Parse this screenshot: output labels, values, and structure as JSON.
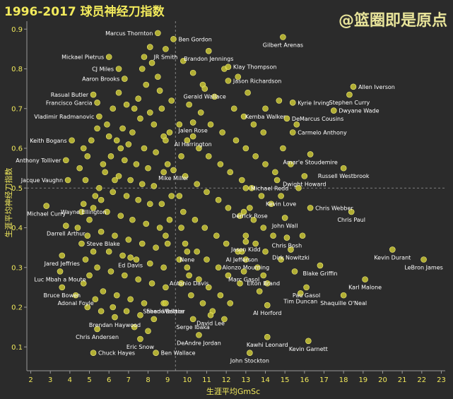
{
  "title": "1996-2017 球员神经刀指数",
  "watermark": "@篮圈即是原点",
  "chart_data": {
    "type": "scatter",
    "title": "1996-2017 球员神经刀指数",
    "xlabel": "生涯平均GmSc",
    "ylabel": "生涯平均神经刀指数",
    "xlim": [
      1.8,
      23.2
    ],
    "ylim": [
      0.04,
      0.92
    ],
    "xticks": [
      2,
      3,
      4,
      5,
      6,
      7,
      8,
      9,
      10,
      11,
      12,
      13,
      14,
      15,
      16,
      17,
      18,
      19,
      20,
      21,
      22,
      23
    ],
    "yticks": [
      0.1,
      0.2,
      0.3,
      0.4,
      0.5,
      0.6,
      0.7,
      0.8,
      0.9
    ],
    "reference_lines": {
      "x": 9.4,
      "y": 0.5
    },
    "grid": false,
    "labeled_points": [
      {
        "name": "Marcus Thornton",
        "x": 8.5,
        "y": 0.89,
        "anchor": "end"
      },
      {
        "name": "Ben Gordon",
        "x": 9.3,
        "y": 0.875,
        "anchor": "start"
      },
      {
        "name": "Gilbert Arenas",
        "x": 14.9,
        "y": 0.88,
        "anchor": "middle"
      },
      {
        "name": "JR Smith",
        "x": 8.9,
        "y": 0.85,
        "anchor": "middle"
      },
      {
        "name": "Brandon Jennings",
        "x": 11.1,
        "y": 0.845,
        "anchor": "middle"
      },
      {
        "name": "Mickael Pietrus",
        "x": 6.0,
        "y": 0.83,
        "anchor": "end"
      },
      {
        "name": "Klay Thompson",
        "x": 12.1,
        "y": 0.805,
        "anchor": "start"
      },
      {
        "name": "CJ Miles",
        "x": 6.5,
        "y": 0.8,
        "anchor": "end"
      },
      {
        "name": "Aaron Brooks",
        "x": 6.8,
        "y": 0.775,
        "anchor": "end"
      },
      {
        "name": "Jason Richardson",
        "x": 12.1,
        "y": 0.77,
        "anchor": "start"
      },
      {
        "name": "Gerald Wallace",
        "x": 10.9,
        "y": 0.75,
        "anchor": "middle"
      },
      {
        "name": "Allen Iverson",
        "x": 18.5,
        "y": 0.755,
        "anchor": "start"
      },
      {
        "name": "Rasual Butler",
        "x": 5.2,
        "y": 0.735,
        "anchor": "end"
      },
      {
        "name": "Stephen Curry",
        "x": 18.3,
        "y": 0.735,
        "anchor": "middle"
      },
      {
        "name": "Francisco Garcia",
        "x": 5.4,
        "y": 0.715,
        "anchor": "end"
      },
      {
        "name": "Kyrie Irving",
        "x": 15.4,
        "y": 0.715,
        "anchor": "start"
      },
      {
        "name": "Kemba Walker",
        "x": 14.0,
        "y": 0.7,
        "anchor": "middle"
      },
      {
        "name": "Dwyane Wade",
        "x": 17.5,
        "y": 0.695,
        "anchor": "start"
      },
      {
        "name": "Vladimir Radmanovic",
        "x": 5.5,
        "y": 0.68,
        "anchor": "end"
      },
      {
        "name": "DeMarcus Cousins",
        "x": 15.1,
        "y": 0.675,
        "anchor": "start"
      },
      {
        "name": "Jalen Rose",
        "x": 10.3,
        "y": 0.665,
        "anchor": "middle"
      },
      {
        "name": "Carmelo Anthony",
        "x": 15.4,
        "y": 0.64,
        "anchor": "start"
      },
      {
        "name": "Al Harrington",
        "x": 10.3,
        "y": 0.63,
        "anchor": "middle"
      },
      {
        "name": "Keith Bogans",
        "x": 4.1,
        "y": 0.62,
        "anchor": "end"
      },
      {
        "name": "Amar'e Stoudemire",
        "x": 16.3,
        "y": 0.585,
        "anchor": "middle"
      },
      {
        "name": "Anthony Tolliver",
        "x": 3.8,
        "y": 0.57,
        "anchor": "end"
      },
      {
        "name": "Russell Westbrook",
        "x": 18.0,
        "y": 0.55,
        "anchor": "middle"
      },
      {
        "name": "Mike Miller",
        "x": 9.3,
        "y": 0.545,
        "anchor": "middle"
      },
      {
        "name": "Dwight Howard",
        "x": 16.0,
        "y": 0.53,
        "anchor": "middle"
      },
      {
        "name": "Jacque Vaughn",
        "x": 3.9,
        "y": 0.52,
        "anchor": "end"
      },
      {
        "name": "Michael Redd",
        "x": 13.0,
        "y": 0.5,
        "anchor": "start"
      },
      {
        "name": "Kevin Love",
        "x": 14.8,
        "y": 0.48,
        "anchor": "middle"
      },
      {
        "name": "Wayne Ellington",
        "x": 4.7,
        "y": 0.46,
        "anchor": "middle"
      },
      {
        "name": "Michael Curry",
        "x": 2.8,
        "y": 0.455,
        "anchor": "middle"
      },
      {
        "name": "Derrick Rose",
        "x": 13.2,
        "y": 0.45,
        "anchor": "middle"
      },
      {
        "name": "Chris Webber",
        "x": 16.3,
        "y": 0.45,
        "anchor": "start"
      },
      {
        "name": "Chris Paul",
        "x": 18.4,
        "y": 0.44,
        "anchor": "middle"
      },
      {
        "name": "John Wall",
        "x": 15.0,
        "y": 0.425,
        "anchor": "middle"
      },
      {
        "name": "Darrell Arthur",
        "x": 3.8,
        "y": 0.405,
        "anchor": "middle"
      },
      {
        "name": "Chris Bosh",
        "x": 15.1,
        "y": 0.375,
        "anchor": "middle"
      },
      {
        "name": "Steve Blake",
        "x": 4.6,
        "y": 0.36,
        "anchor": "start"
      },
      {
        "name": "Jason Kidd",
        "x": 13.0,
        "y": 0.365,
        "anchor": "middle"
      },
      {
        "name": "Al Jefferson",
        "x": 12.8,
        "y": 0.34,
        "anchor": "middle"
      },
      {
        "name": "Dirk Nowitzki",
        "x": 15.3,
        "y": 0.345,
        "anchor": "middle"
      },
      {
        "name": "Kevin Durant",
        "x": 20.5,
        "y": 0.345,
        "anchor": "middle"
      },
      {
        "name": "Nene",
        "x": 10.0,
        "y": 0.34,
        "anchor": "middle"
      },
      {
        "name": "Jared Jeffries",
        "x": 3.6,
        "y": 0.33,
        "anchor": "middle"
      },
      {
        "name": "Ed Davis",
        "x": 7.1,
        "y": 0.325,
        "anchor": "middle"
      },
      {
        "name": "LeBron James",
        "x": 22.1,
        "y": 0.32,
        "anchor": "middle"
      },
      {
        "name": "Alonzo Mourning",
        "x": 13.0,
        "y": 0.32,
        "anchor": "middle"
      },
      {
        "name": "Blake Griffin",
        "x": 16.8,
        "y": 0.305,
        "anchor": "middle"
      },
      {
        "name": "Luc Mbah a Moute",
        "x": 3.5,
        "y": 0.29,
        "anchor": "middle"
      },
      {
        "name": "Marc Gasol",
        "x": 12.9,
        "y": 0.29,
        "anchor": "middle"
      },
      {
        "name": "Antonio Davis",
        "x": 10.1,
        "y": 0.28,
        "anchor": "middle"
      },
      {
        "name": "Elton Brand",
        "x": 13.9,
        "y": 0.28,
        "anchor": "middle"
      },
      {
        "name": "Karl Malone",
        "x": 19.1,
        "y": 0.27,
        "anchor": "middle"
      },
      {
        "name": "Pau Gasol",
        "x": 16.1,
        "y": 0.25,
        "anchor": "middle"
      },
      {
        "name": "Bruce Bowen",
        "x": 3.6,
        "y": 0.25,
        "anchor": "middle"
      },
      {
        "name": "Adonal Foyle",
        "x": 4.3,
        "y": 0.23,
        "anchor": "middle"
      },
      {
        "name": "Tim Duncan",
        "x": 15.8,
        "y": 0.235,
        "anchor": "middle"
      },
      {
        "name": "Shaquille O'Neal",
        "x": 18.0,
        "y": 0.23,
        "anchor": "middle"
      },
      {
        "name": "Sheed Wallace",
        "x": 8.8,
        "y": 0.21,
        "anchor": "middle"
      },
      {
        "name": "Shane Battier",
        "x": 8.9,
        "y": 0.21,
        "anchor": "middle"
      },
      {
        "name": "Al Horford",
        "x": 14.1,
        "y": 0.205,
        "anchor": "middle"
      },
      {
        "name": "David Lee",
        "x": 11.2,
        "y": 0.18,
        "anchor": "middle"
      },
      {
        "name": "Brendan Haywood",
        "x": 6.3,
        "y": 0.175,
        "anchor": "middle"
      },
      {
        "name": "Serge Ibaka",
        "x": 10.3,
        "y": 0.17,
        "anchor": "middle"
      },
      {
        "name": "Chris Andersen",
        "x": 5.4,
        "y": 0.145,
        "anchor": "middle"
      },
      {
        "name": "DeAndre Jordan",
        "x": 10.6,
        "y": 0.13,
        "anchor": "middle"
      },
      {
        "name": "Kawhi Leonard",
        "x": 14.1,
        "y": 0.125,
        "anchor": "middle"
      },
      {
        "name": "Eric Snow",
        "x": 7.6,
        "y": 0.12,
        "anchor": "middle"
      },
      {
        "name": "Kevin Garnett",
        "x": 16.2,
        "y": 0.115,
        "anchor": "middle"
      },
      {
        "name": "Chuck Hayes",
        "x": 5.2,
        "y": 0.085,
        "anchor": "start"
      },
      {
        "name": "Ben Wallace",
        "x": 8.4,
        "y": 0.085,
        "anchor": "start"
      },
      {
        "name": "John Stockton",
        "x": 13.2,
        "y": 0.085,
        "anchor": "middle"
      }
    ],
    "unlabeled_points": [
      [
        8.1,
        0.855
      ],
      [
        7.8,
        0.83
      ],
      [
        8.2,
        0.815
      ],
      [
        7.7,
        0.8
      ],
      [
        8.5,
        0.78
      ],
      [
        7.9,
        0.76
      ],
      [
        8.6,
        0.745
      ],
      [
        7.5,
        0.725
      ],
      [
        6.9,
        0.71
      ],
      [
        7.3,
        0.7
      ],
      [
        8.1,
        0.69
      ],
      [
        7.6,
        0.675
      ],
      [
        8.3,
        0.66
      ],
      [
        6.7,
        0.65
      ],
      [
        7.2,
        0.64
      ],
      [
        8.8,
        0.63
      ],
      [
        6.4,
        0.62
      ],
      [
        7.0,
        0.61
      ],
      [
        7.8,
        0.6
      ],
      [
        8.4,
        0.59
      ],
      [
        6.1,
        0.58
      ],
      [
        6.8,
        0.57
      ],
      [
        7.4,
        0.56
      ],
      [
        8.0,
        0.55
      ],
      [
        5.8,
        0.54
      ],
      [
        6.5,
        0.53
      ],
      [
        7.1,
        0.52
      ],
      [
        7.7,
        0.51
      ],
      [
        8.3,
        0.505
      ],
      [
        5.5,
        0.5
      ],
      [
        6.2,
        0.49
      ],
      [
        6.9,
        0.48
      ],
      [
        7.5,
        0.47
      ],
      [
        8.1,
        0.46
      ],
      [
        5.2,
        0.45
      ],
      [
        5.9,
        0.44
      ],
      [
        6.6,
        0.43
      ],
      [
        7.2,
        0.42
      ],
      [
        7.9,
        0.41
      ],
      [
        8.6,
        0.4
      ],
      [
        5.6,
        0.39
      ],
      [
        6.3,
        0.38
      ],
      [
        7.0,
        0.37
      ],
      [
        7.7,
        0.36
      ],
      [
        8.4,
        0.35
      ],
      [
        6.0,
        0.34
      ],
      [
        6.7,
        0.33
      ],
      [
        7.4,
        0.32
      ],
      [
        8.1,
        0.31
      ],
      [
        8.8,
        0.3
      ],
      [
        5.4,
        0.3
      ],
      [
        6.1,
        0.29
      ],
      [
        6.8,
        0.28
      ],
      [
        7.5,
        0.27
      ],
      [
        8.2,
        0.26
      ],
      [
        8.9,
        0.25
      ],
      [
        5.7,
        0.24
      ],
      [
        6.4,
        0.23
      ],
      [
        7.1,
        0.22
      ],
      [
        7.8,
        0.21
      ],
      [
        6.2,
        0.2
      ],
      [
        6.9,
        0.19
      ],
      [
        7.6,
        0.18
      ],
      [
        8.3,
        0.17
      ],
      [
        7.3,
        0.15
      ],
      [
        8.0,
        0.14
      ],
      [
        4.7,
        0.6
      ],
      [
        4.9,
        0.58
      ],
      [
        5.1,
        0.62
      ],
      [
        4.5,
        0.55
      ],
      [
        4.8,
        0.52
      ],
      [
        5.3,
        0.48
      ],
      [
        4.6,
        0.44
      ],
      [
        5.0,
        0.42
      ],
      [
        4.4,
        0.4
      ],
      [
        4.9,
        0.38
      ],
      [
        5.2,
        0.34
      ],
      [
        4.8,
        0.32
      ],
      [
        5.0,
        0.28
      ],
      [
        4.7,
        0.26
      ],
      [
        5.3,
        0.22
      ],
      [
        5.6,
        0.19
      ],
      [
        4.9,
        0.2
      ],
      [
        6.5,
        0.74
      ],
      [
        6.2,
        0.7
      ],
      [
        5.9,
        0.66
      ],
      [
        6.6,
        0.6
      ],
      [
        5.7,
        0.56
      ],
      [
        6.0,
        0.63
      ],
      [
        5.4,
        0.65
      ],
      [
        6.3,
        0.52
      ],
      [
        5.6,
        0.47
      ],
      [
        9.8,
        0.82
      ],
      [
        10.3,
        0.79
      ],
      [
        10.8,
        0.76
      ],
      [
        11.4,
        0.73
      ],
      [
        10.1,
        0.71
      ],
      [
        10.7,
        0.69
      ],
      [
        11.2,
        0.66
      ],
      [
        11.8,
        0.64
      ],
      [
        10.0,
        0.62
      ],
      [
        10.6,
        0.6
      ],
      [
        11.1,
        0.58
      ],
      [
        11.7,
        0.56
      ],
      [
        12.2,
        0.54
      ],
      [
        9.9,
        0.53
      ],
      [
        10.5,
        0.51
      ],
      [
        11.0,
        0.49
      ],
      [
        11.6,
        0.47
      ],
      [
        12.1,
        0.45
      ],
      [
        12.7,
        0.43
      ],
      [
        9.8,
        0.44
      ],
      [
        10.4,
        0.42
      ],
      [
        10.9,
        0.4
      ],
      [
        11.5,
        0.38
      ],
      [
        12.0,
        0.36
      ],
      [
        12.6,
        0.34
      ],
      [
        9.9,
        0.36
      ],
      [
        10.5,
        0.34
      ],
      [
        11.0,
        0.32
      ],
      [
        11.6,
        0.3
      ],
      [
        12.1,
        0.28
      ],
      [
        12.7,
        0.26
      ],
      [
        10.0,
        0.3
      ],
      [
        10.6,
        0.27
      ],
      [
        11.1,
        0.25
      ],
      [
        11.7,
        0.23
      ],
      [
        12.2,
        0.21
      ],
      [
        10.2,
        0.23
      ],
      [
        10.8,
        0.21
      ],
      [
        11.3,
        0.19
      ],
      [
        11.9,
        0.17
      ],
      [
        12.4,
        0.7
      ],
      [
        12.9,
        0.68
      ],
      [
        13.4,
        0.66
      ],
      [
        13.9,
        0.64
      ],
      [
        12.5,
        0.62
      ],
      [
        13.0,
        0.6
      ],
      [
        13.5,
        0.58
      ],
      [
        14.0,
        0.56
      ],
      [
        14.5,
        0.54
      ],
      [
        12.8,
        0.52
      ],
      [
        13.3,
        0.5
      ],
      [
        13.8,
        0.48
      ],
      [
        14.3,
        0.46
      ],
      [
        12.9,
        0.44
      ],
      [
        13.4,
        0.42
      ],
      [
        13.9,
        0.4
      ],
      [
        14.4,
        0.38
      ],
      [
        13.0,
        0.38
      ],
      [
        13.5,
        0.36
      ],
      [
        14.0,
        0.34
      ],
      [
        13.6,
        0.3
      ],
      [
        14.1,
        0.26
      ],
      [
        13.7,
        0.24
      ],
      [
        9.6,
        0.66
      ],
      [
        9.7,
        0.58
      ],
      [
        9.6,
        0.48
      ],
      [
        9.7,
        0.4
      ],
      [
        9.6,
        0.32
      ],
      [
        9.7,
        0.26
      ],
      [
        9.2,
        0.72
      ],
      [
        9.1,
        0.64
      ],
      [
        9.0,
        0.56
      ],
      [
        9.2,
        0.48
      ],
      [
        9.1,
        0.42
      ],
      [
        9.0,
        0.36
      ],
      [
        8.7,
        0.7
      ],
      [
        8.9,
        0.62
      ],
      [
        8.8,
        0.54
      ],
      [
        8.7,
        0.46
      ],
      [
        8.9,
        0.38
      ],
      [
        11.9,
        0.8
      ],
      [
        12.6,
        0.78
      ],
      [
        13.1,
        0.74
      ],
      [
        14.7,
        0.72
      ],
      [
        15.6,
        0.66
      ],
      [
        14.9,
        0.6
      ],
      [
        15.3,
        0.56
      ],
      [
        14.6,
        0.52
      ],
      [
        15.7,
        0.5
      ],
      [
        15.9,
        0.38
      ],
      [
        14.8,
        0.32
      ],
      [
        15.5,
        0.29
      ]
    ]
  }
}
